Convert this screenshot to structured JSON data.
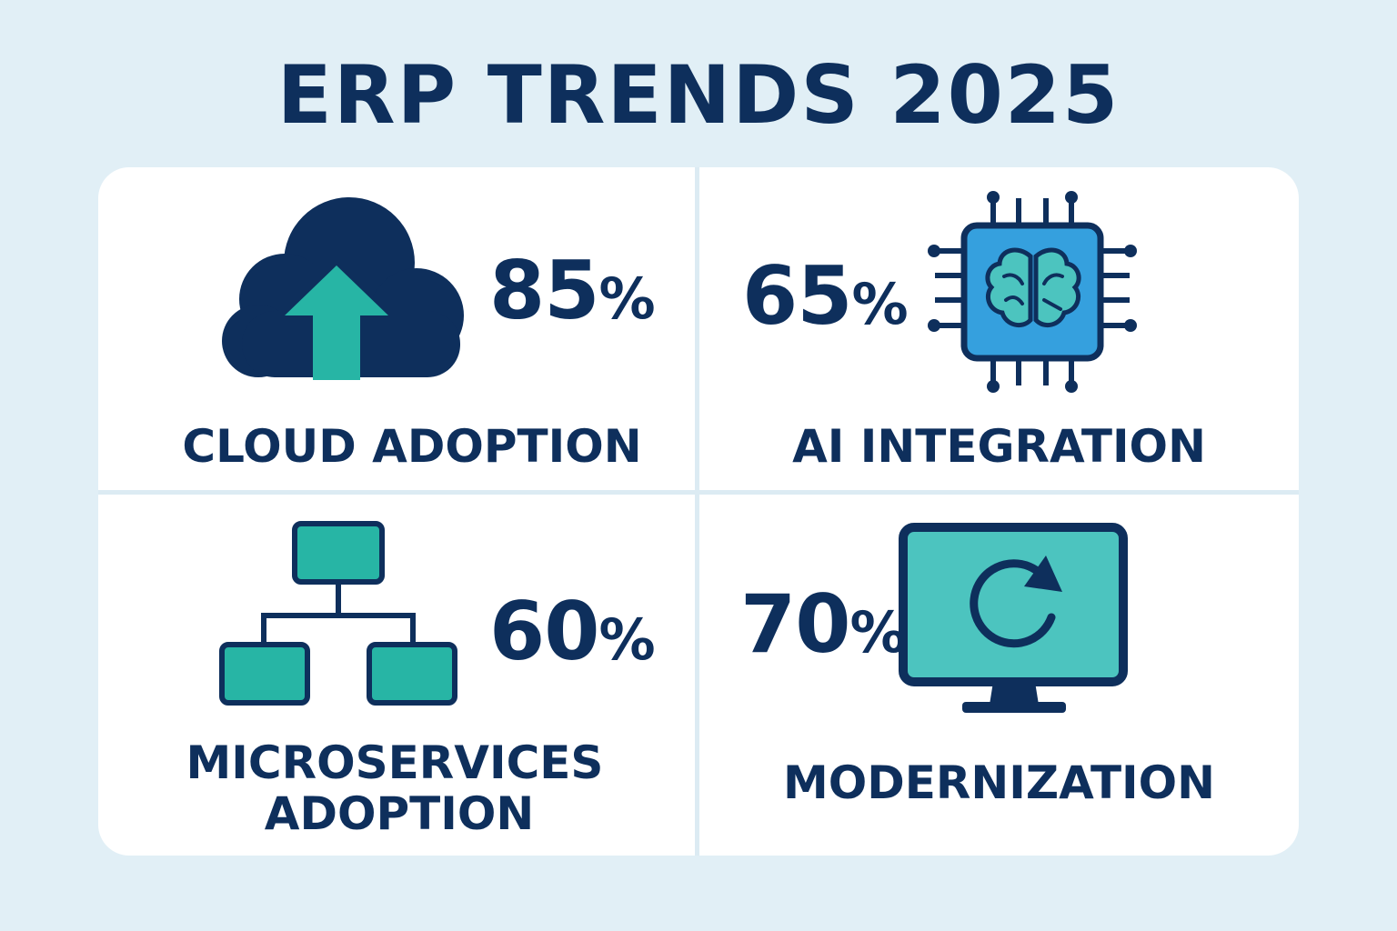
{
  "title": "ERP TRENDS 2025",
  "colors": {
    "navy": "#0e2f5c",
    "teal": "#27b5a5",
    "sky": "#35a0de",
    "screen": "#4cc4bf",
    "background": "#e1eff6"
  },
  "trends": [
    {
      "value": "85",
      "unit": "%",
      "label": "CLOUD ADOPTION",
      "icon": "cloud-upload-icon"
    },
    {
      "value": "65",
      "unit": "%",
      "label": "AI INTEGRATION",
      "icon": "ai-chip-brain-icon"
    },
    {
      "value": "60",
      "unit": "%",
      "label_line1": "MICROSERVICES",
      "label_line2": "ADOPTION",
      "icon": "microservices-network-icon"
    },
    {
      "value": "70",
      "unit": "%",
      "label": "MODERNIZATION",
      "icon": "monitor-refresh-icon"
    }
  ]
}
